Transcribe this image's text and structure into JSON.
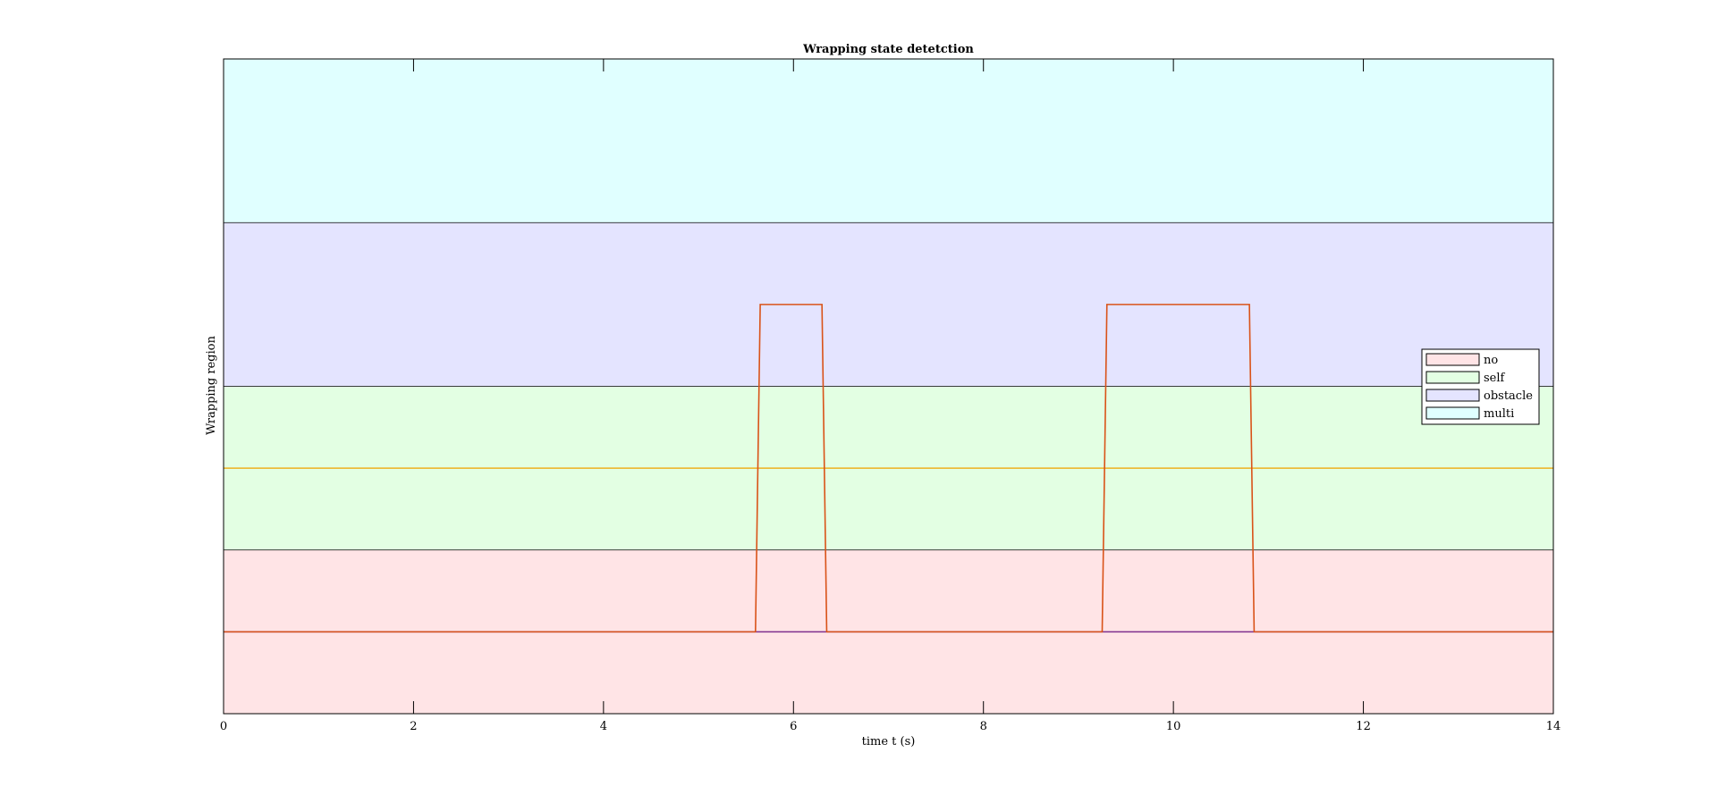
{
  "chart_data": {
    "type": "line",
    "title": "Wrapping state detetction",
    "xlabel": "time t  (s)",
    "ylabel": "Wrapping region",
    "xlim": [
      0,
      14
    ],
    "ylim": [
      0,
      4
    ],
    "xticks": [
      0,
      2,
      4,
      6,
      8,
      10,
      12,
      14
    ],
    "xtick_labels": [
      "0",
      "2",
      "4",
      "6",
      "8",
      "10",
      "12",
      "14"
    ],
    "yticks_shown": false,
    "grid": false,
    "bands": [
      {
        "name": "no",
        "from": 0,
        "to": 1,
        "color": "#ffe4e6"
      },
      {
        "name": "self",
        "from": 1,
        "to": 2,
        "color": "#e3ffe3"
      },
      {
        "name": "obstacle",
        "from": 2,
        "to": 3,
        "color": "#e4e4ff"
      },
      {
        "name": "multi",
        "from": 3,
        "to": 4,
        "color": "#e0ffff"
      }
    ],
    "legend": {
      "placement": "right",
      "entries": [
        "no",
        "self",
        "obstacle",
        "multi"
      ]
    },
    "series": [
      {
        "color": "#d95319",
        "x": [
          0,
          5.6,
          5.65,
          6.3,
          6.35,
          9.25,
          9.3,
          10.8,
          10.85,
          14
        ],
        "y": [
          0.5,
          0.5,
          2.5,
          2.5,
          0.5,
          0.5,
          2.5,
          2.5,
          0.5,
          0.5
        ]
      },
      {
        "color": "#edb120",
        "x": [
          0,
          14
        ],
        "y": [
          1.5,
          1.5
        ]
      },
      {
        "color": "#7e2f8e",
        "x": [
          0,
          14
        ],
        "y": [
          0.5,
          0.5
        ]
      }
    ]
  }
}
